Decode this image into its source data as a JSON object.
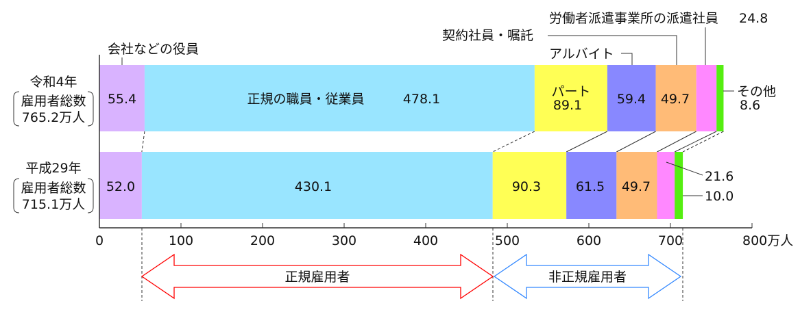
{
  "chart_data": {
    "type": "bar",
    "orientation": "horizontal",
    "stacked": true,
    "categories": [
      "令和4年",
      "平成29年"
    ],
    "category_notes": [
      {
        "line1": "雇用者総数",
        "line2": "765.2万人"
      },
      {
        "line1": "雇用者総数",
        "line2": "715.1万人"
      }
    ],
    "series": [
      {
        "name": "会社などの役員",
        "color": "#d9b3ff",
        "values": [
          55.4,
          52.0
        ]
      },
      {
        "name": "正規の職員・従業員",
        "color": "#99e5ff",
        "values": [
          478.1,
          430.1
        ]
      },
      {
        "name": "パート",
        "color": "#ffff55",
        "values": [
          89.1,
          90.3
        ]
      },
      {
        "name": "アルバイト",
        "color": "#8888ff",
        "values": [
          59.4,
          61.5
        ]
      },
      {
        "name": "契約社員・嘱託",
        "color": "#ffbb77",
        "values": [
          49.7,
          49.7
        ]
      },
      {
        "name": "労働者派遣事業所の派遣社員",
        "color": "#ff88ff",
        "values": [
          24.8,
          21.6
        ]
      },
      {
        "name": "その他",
        "color": "#55ee11",
        "values": [
          8.6,
          10.0
        ]
      }
    ],
    "data_labels": {
      "r4": [
        "55.4",
        "478.1",
        "89.1",
        "59.4",
        "49.7",
        "24.8",
        "8.6"
      ],
      "h29": [
        "52.0",
        "430.1",
        "90.3",
        "61.5",
        "49.7",
        "21.6",
        "10.0"
      ]
    },
    "xlim": [
      0,
      800
    ],
    "xticks": [
      "0",
      "100",
      "200",
      "300",
      "400",
      "500",
      "600",
      "700",
      "800万人"
    ],
    "grid": false,
    "annotations": {
      "regular": {
        "text": "正規雇用者",
        "color": "#ff0000"
      },
      "non_regular": {
        "text": "非正規雇用者",
        "color": "#3388ff"
      }
    }
  }
}
